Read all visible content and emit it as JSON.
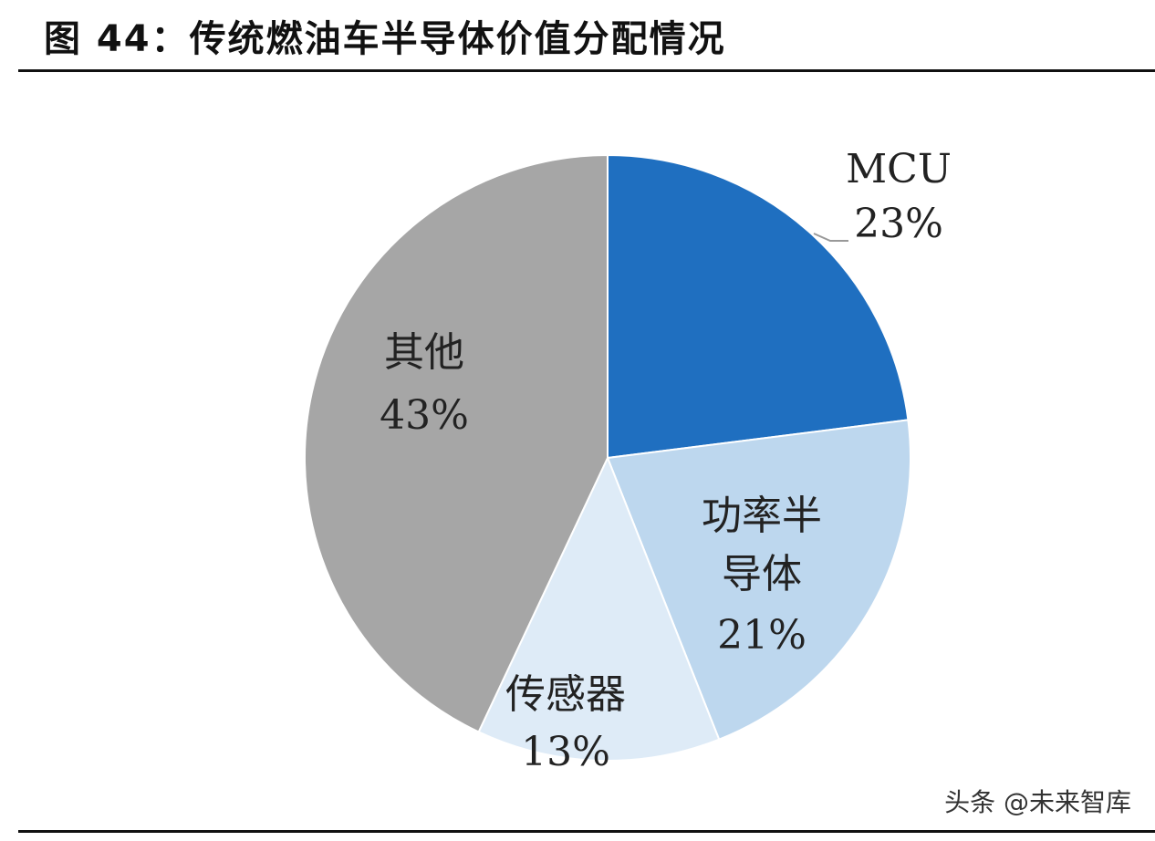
{
  "title": "图 44：传统燃油车半导体价值分配情况",
  "chart_data": {
    "type": "pie",
    "categories": [
      "MCU",
      "功率半导体",
      "传感器",
      "其他"
    ],
    "values": [
      23,
      21,
      13,
      43
    ],
    "value_labels": [
      "23%",
      "21%",
      "13%",
      "43%"
    ],
    "colors": [
      "#1f6fc0",
      "#bdd7ee",
      "#deebf7",
      "#a6a6a6"
    ]
  },
  "watermark": "头条 @未来智库"
}
